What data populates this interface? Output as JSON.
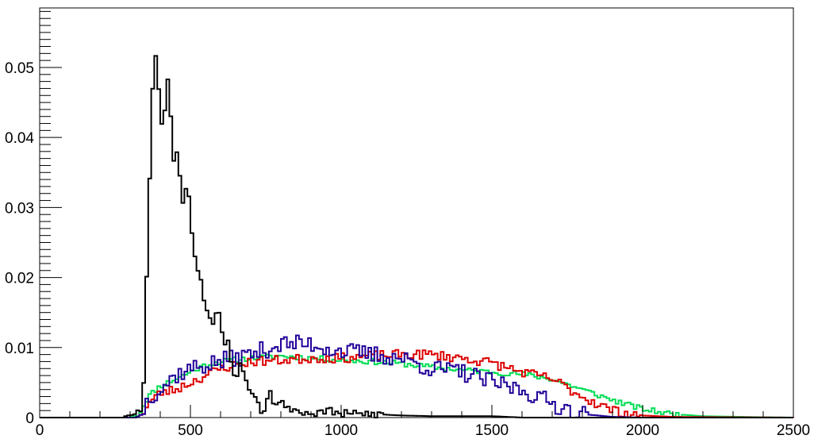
{
  "chart_data": {
    "type": "histogram",
    "title": "",
    "xlabel": "",
    "ylabel": "",
    "xlim": [
      0,
      2500
    ],
    "ylim": [
      0,
      0.0585
    ],
    "grid": false,
    "legend": "none",
    "bin_width": 10,
    "x_ticks": [
      "0",
      "500",
      "1000",
      "1500",
      "2000",
      "2500"
    ],
    "y_ticks": [
      "0",
      "0.01",
      "0.02",
      "0.03",
      "0.04",
      "0.05"
    ],
    "x_tick_values": [
      0,
      500,
      1000,
      1500,
      2000,
      2500
    ],
    "y_tick_values": [
      0,
      0.01,
      0.02,
      0.03,
      0.04,
      0.05
    ],
    "series": [
      {
        "color": "#00dd55",
        "knots": [
          [
            0,
            0
          ],
          [
            300,
            0
          ],
          [
            330,
            0.0005
          ],
          [
            360,
            0.003
          ],
          [
            400,
            0.0045
          ],
          [
            450,
            0.0055
          ],
          [
            500,
            0.0065
          ],
          [
            550,
            0.0075
          ],
          [
            600,
            0.008
          ],
          [
            700,
            0.0085
          ],
          [
            800,
            0.0088
          ],
          [
            900,
            0.0085
          ],
          [
            1000,
            0.0082
          ],
          [
            1100,
            0.008
          ],
          [
            1200,
            0.0077
          ],
          [
            1300,
            0.0072
          ],
          [
            1400,
            0.0068
          ],
          [
            1500,
            0.0065
          ],
          [
            1600,
            0.0062
          ],
          [
            1700,
            0.0055
          ],
          [
            1800,
            0.004
          ],
          [
            1900,
            0.0025
          ],
          [
            2000,
            0.0012
          ],
          [
            2100,
            0.0005
          ],
          [
            2200,
            0.0002
          ],
          [
            2400,
            5e-05
          ],
          [
            2500,
            0
          ]
        ],
        "noise": 0.0004,
        "seed": 11
      },
      {
        "color": "#dd0000",
        "knots": [
          [
            0,
            0
          ],
          [
            320,
            0
          ],
          [
            340,
            0.0005
          ],
          [
            360,
            0.002
          ],
          [
            400,
            0.0035
          ],
          [
            450,
            0.004
          ],
          [
            500,
            0.005
          ],
          [
            600,
            0.007
          ],
          [
            700,
            0.008
          ],
          [
            800,
            0.0082
          ],
          [
            900,
            0.0085
          ],
          [
            1000,
            0.0085
          ],
          [
            1100,
            0.0088
          ],
          [
            1200,
            0.009
          ],
          [
            1300,
            0.009
          ],
          [
            1400,
            0.0085
          ],
          [
            1500,
            0.0078
          ],
          [
            1600,
            0.0065
          ],
          [
            1700,
            0.0055
          ],
          [
            1800,
            0.003
          ],
          [
            1900,
            0.001
          ],
          [
            2000,
            0.0003
          ],
          [
            2100,
            0.0001
          ],
          [
            2500,
            0
          ]
        ],
        "noise": 0.0007,
        "seed": 23
      },
      {
        "color": "#220099",
        "knots": [
          [
            0,
            0
          ],
          [
            320,
            0
          ],
          [
            340,
            0.0005
          ],
          [
            360,
            0.003
          ],
          [
            400,
            0.004
          ],
          [
            450,
            0.006
          ],
          [
            500,
            0.007
          ],
          [
            600,
            0.008
          ],
          [
            700,
            0.009
          ],
          [
            800,
            0.0105
          ],
          [
            900,
            0.0105
          ],
          [
            1000,
            0.0095
          ],
          [
            1100,
            0.009
          ],
          [
            1200,
            0.0085
          ],
          [
            1300,
            0.007
          ],
          [
            1400,
            0.0065
          ],
          [
            1500,
            0.005
          ],
          [
            1600,
            0.004
          ],
          [
            1700,
            0.002
          ],
          [
            1800,
            0.0005
          ],
          [
            1900,
            0.0001
          ],
          [
            2000,
            0
          ],
          [
            2500,
            0
          ]
        ],
        "noise": 0.0013,
        "seed": 37
      },
      {
        "color": "#000000",
        "knots": [
          [
            0,
            0
          ],
          [
            280,
            0
          ],
          [
            300,
            0.0008
          ],
          [
            320,
            0.001
          ],
          [
            340,
            0.0005
          ],
          [
            350,
            0.01
          ],
          [
            360,
            0.031
          ],
          [
            370,
            0.038
          ],
          [
            380,
            0.056
          ],
          [
            390,
            0.047
          ],
          [
            400,
            0.046
          ],
          [
            410,
            0.039
          ],
          [
            420,
            0.049
          ],
          [
            430,
            0.048
          ],
          [
            440,
            0.039
          ],
          [
            450,
            0.035
          ],
          [
            460,
            0.04
          ],
          [
            470,
            0.03
          ],
          [
            480,
            0.032
          ],
          [
            490,
            0.033
          ],
          [
            500,
            0.031
          ],
          [
            510,
            0.022
          ],
          [
            520,
            0.023
          ],
          [
            530,
            0.02
          ],
          [
            540,
            0.02
          ],
          [
            550,
            0.013
          ],
          [
            560,
            0.017
          ],
          [
            570,
            0.012
          ],
          [
            580,
            0.015
          ],
          [
            590,
            0.014
          ],
          [
            600,
            0.016
          ],
          [
            610,
            0.009
          ],
          [
            620,
            0.012
          ],
          [
            630,
            0.01
          ],
          [
            640,
            0.007
          ],
          [
            650,
            0.005
          ],
          [
            660,
            0.008
          ],
          [
            680,
            0.006
          ],
          [
            700,
            0.004
          ],
          [
            720,
            0.003
          ],
          [
            740,
            0.0005
          ],
          [
            760,
            0.004
          ],
          [
            780,
            0.002
          ],
          [
            800,
            0.0025
          ],
          [
            820,
            0.001
          ],
          [
            840,
            0.0015
          ],
          [
            860,
            0.0008
          ],
          [
            900,
            0.0005
          ],
          [
            950,
            0.001
          ],
          [
            1000,
            0.0005
          ],
          [
            1100,
            0.0005
          ],
          [
            1200,
            0.0003
          ],
          [
            1300,
            0.0002
          ],
          [
            1400,
            0.0002
          ],
          [
            1500,
            0.0002
          ],
          [
            1600,
            0
          ],
          [
            2500,
            0
          ]
        ],
        "noise": 0.0006,
        "seed": 53
      }
    ]
  }
}
